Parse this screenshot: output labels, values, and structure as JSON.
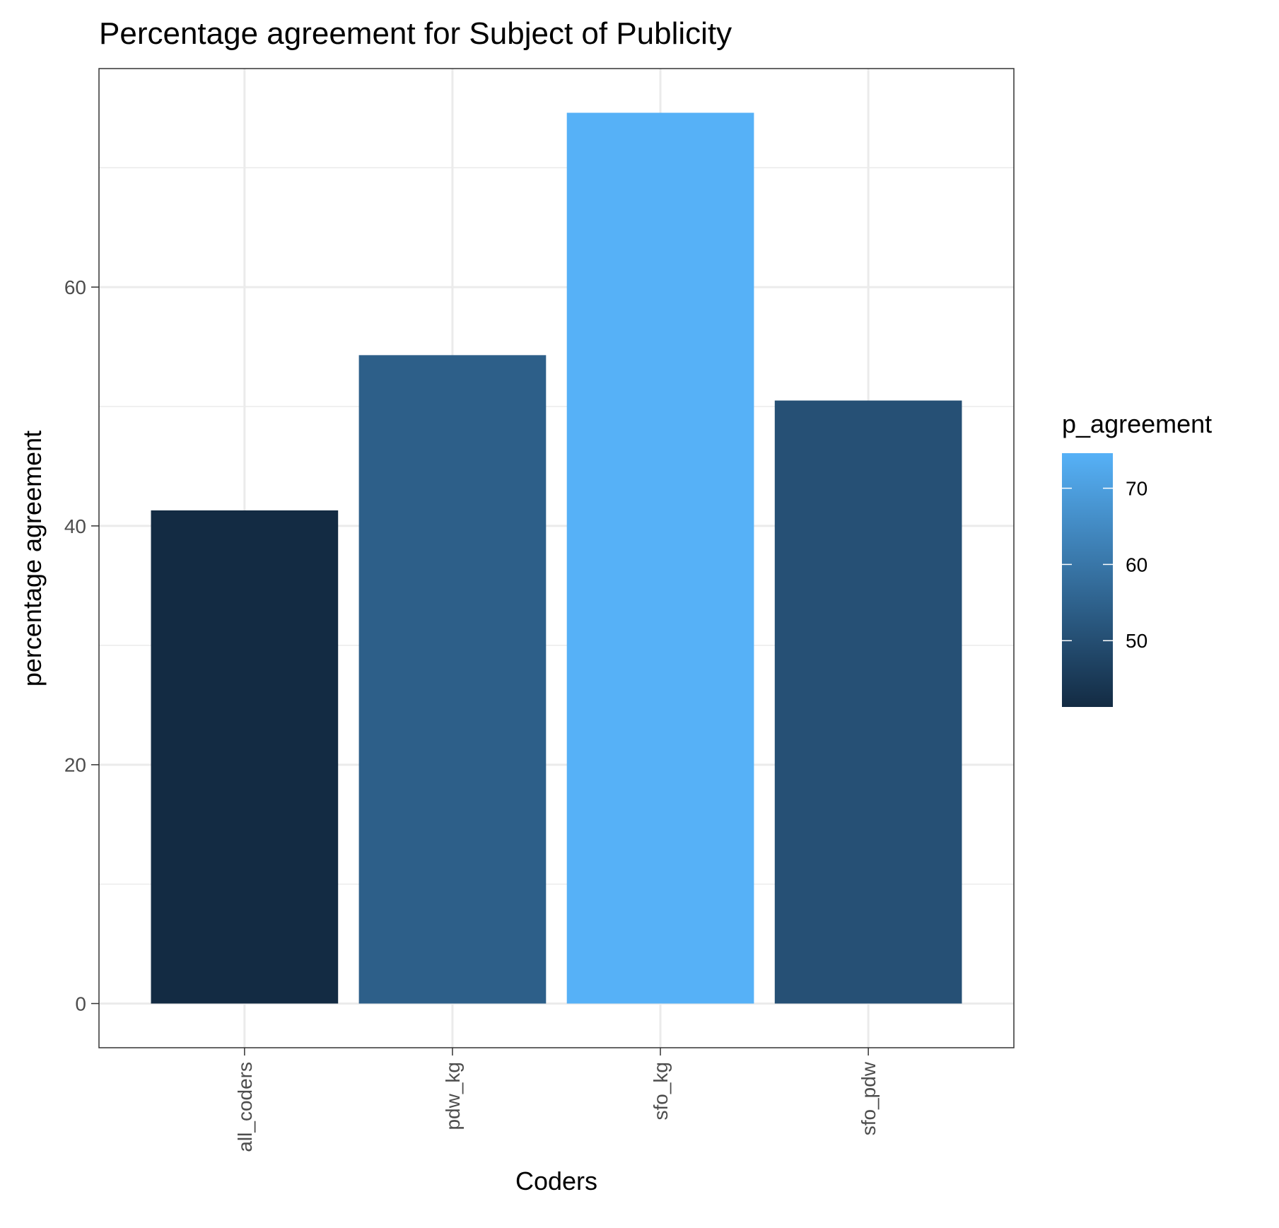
{
  "chart_data": {
    "type": "bar",
    "title": "Percentage agreement for Subject of Publicity",
    "xlabel": "Coders",
    "ylabel": "percentage agreement",
    "categories": [
      "all_coders",
      "pdw_kg",
      "sfo_kg",
      "sfo_pdw"
    ],
    "values": [
      41.3,
      54.3,
      74.6,
      50.5
    ],
    "ylim": [
      -3.7,
      78.3
    ],
    "y_ticks": [
      0,
      20,
      40,
      60
    ],
    "y_tick_labels": [
      "0",
      "20",
      "40",
      "60"
    ],
    "grid": true,
    "legend": {
      "title": "p_agreement",
      "placement": "right",
      "range": [
        41.3,
        74.6
      ],
      "ticks": [
        50,
        60,
        70
      ],
      "tick_labels": [
        "50",
        "60",
        "70"
      ],
      "color_low": "#132B43",
      "color_high": "#56B1F7"
    }
  }
}
